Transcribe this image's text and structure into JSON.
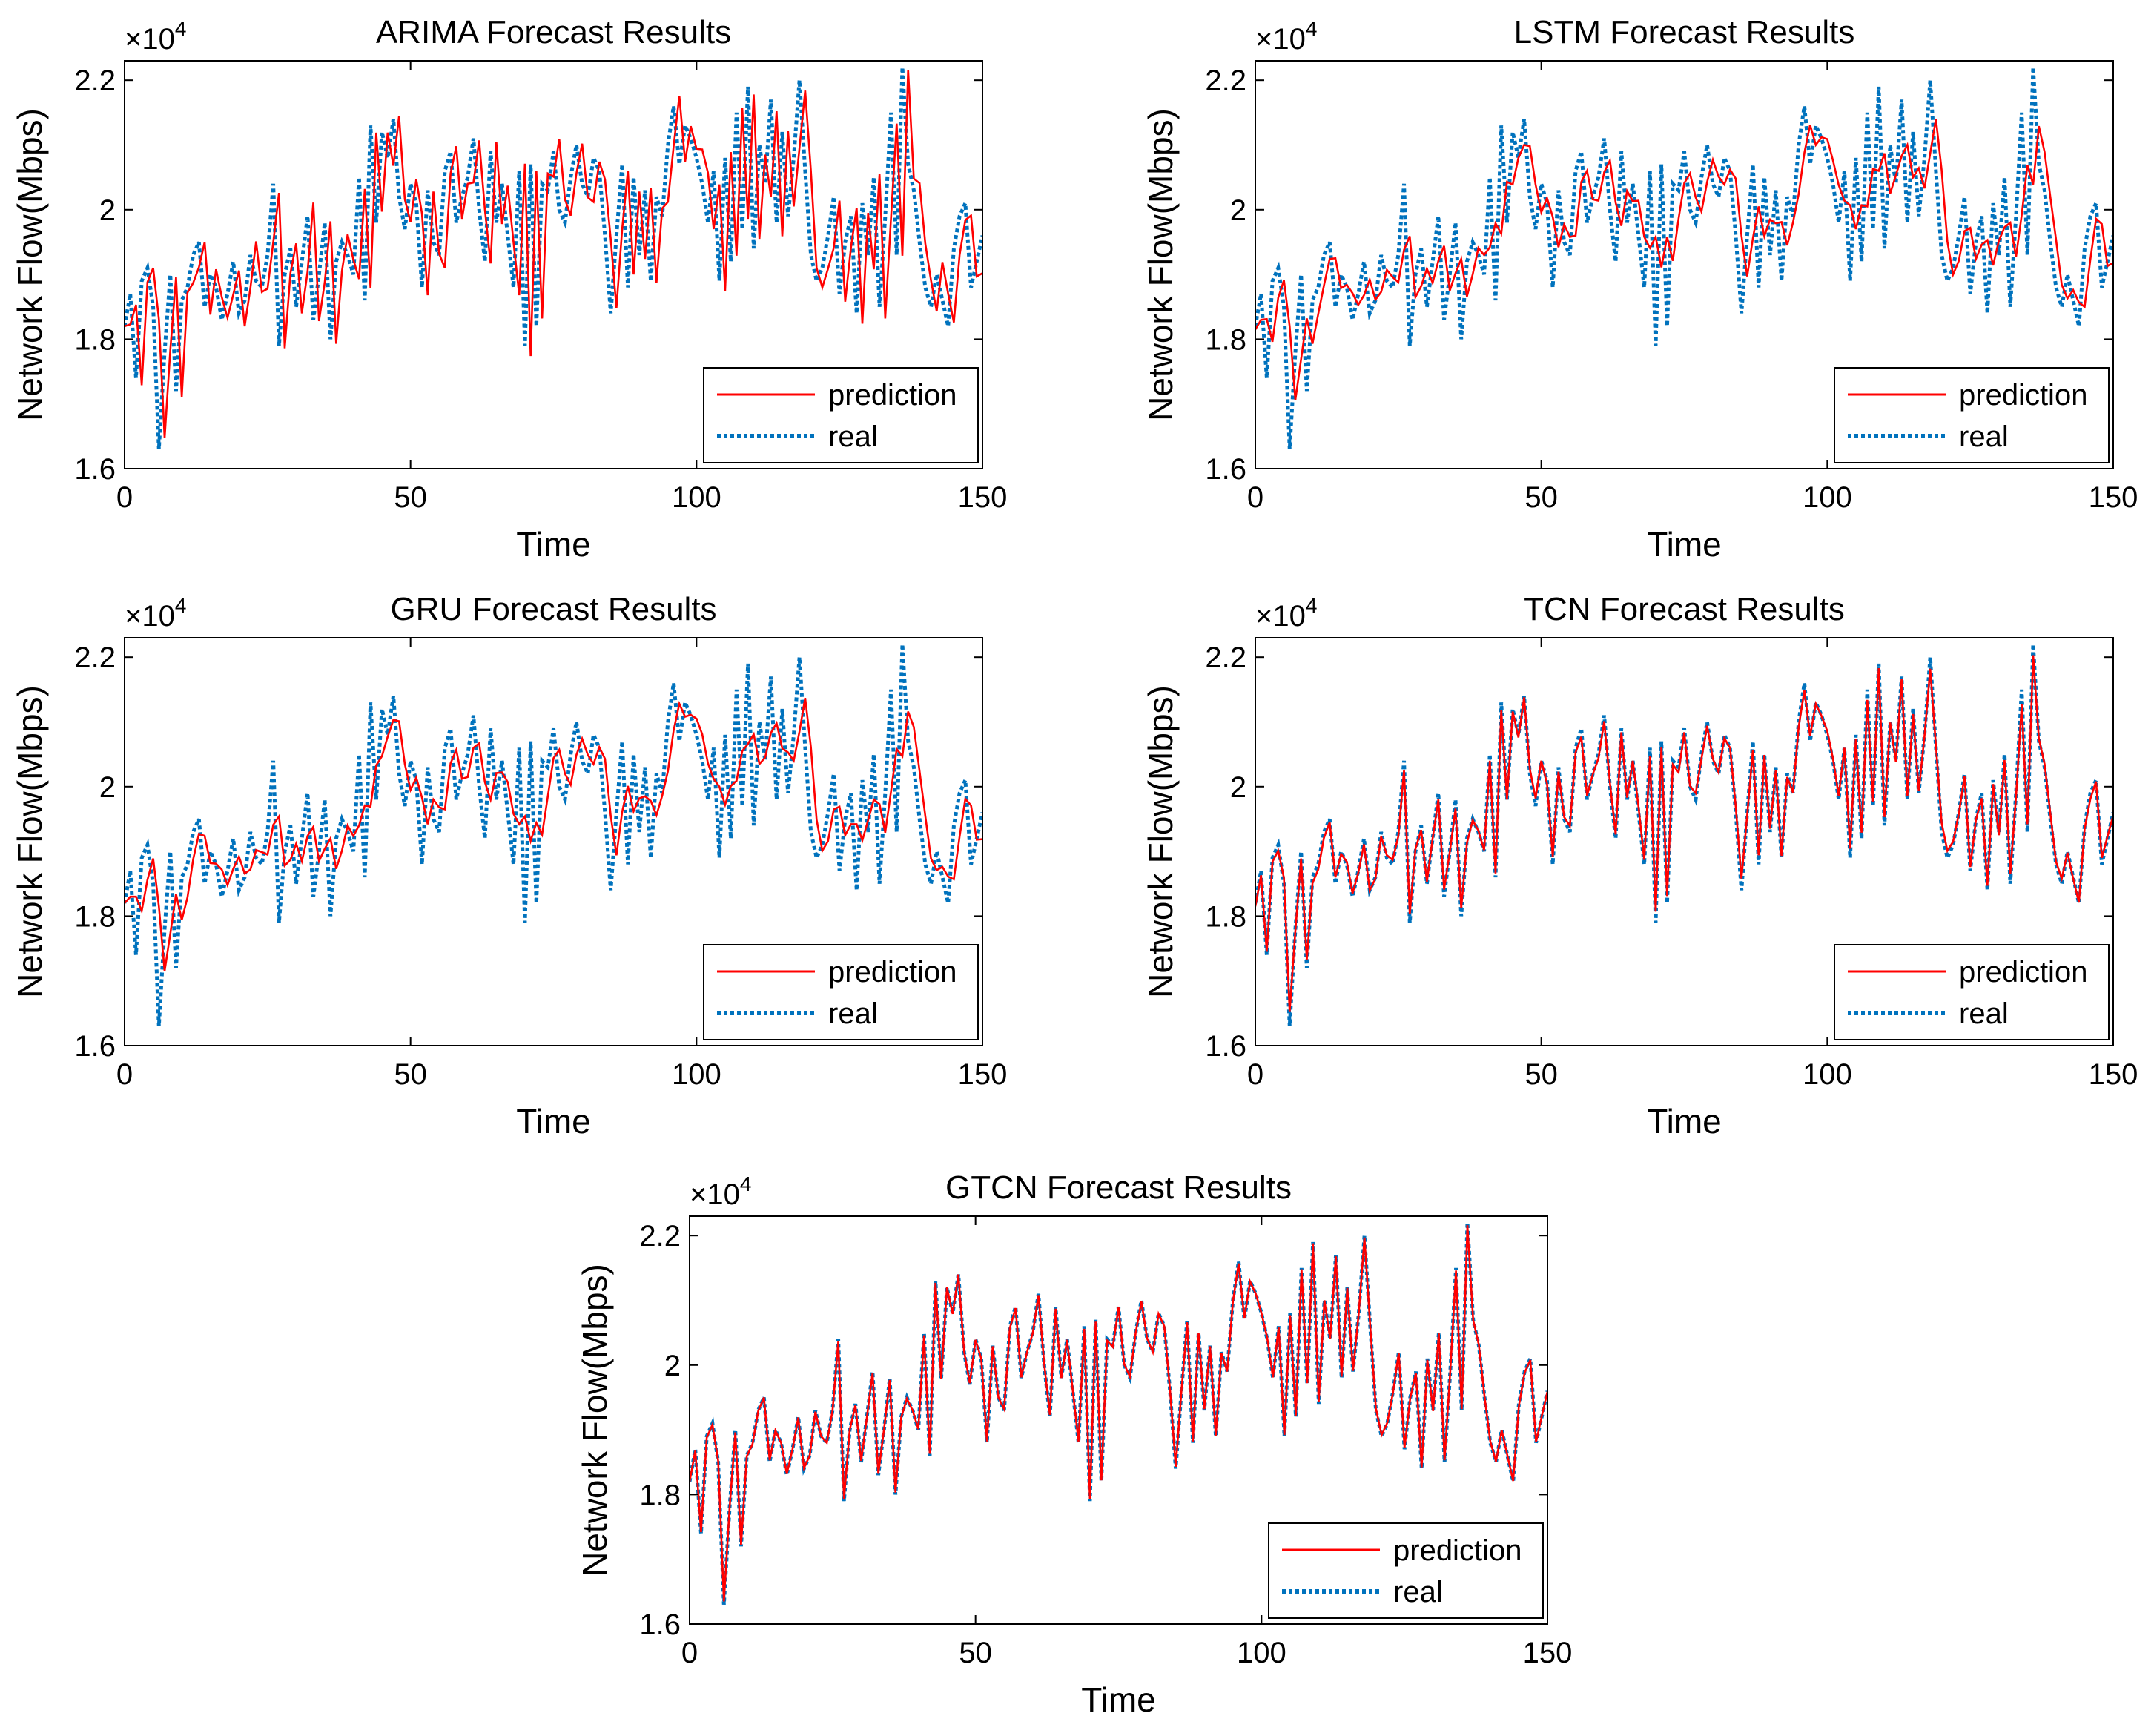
{
  "figure_description": "Five MATLAB-style line charts of network flow forecasts",
  "colors": {
    "prediction": "#ff0000",
    "real": "#0072bd",
    "axis": "#000000"
  },
  "chart_data": [
    {
      "type": "line",
      "title": "ARIMA Forecast Results",
      "xlabel": "Time",
      "ylabel": "Network Flow(Mbps)",
      "exponent": "×10",
      "exponent_power": "4",
      "xlim": [
        0,
        150
      ],
      "ylim": [
        1.6,
        2.23
      ],
      "xticks": [
        0,
        50,
        100,
        150
      ],
      "yticks": [
        1.6,
        1.8,
        2.0,
        2.2
      ],
      "ytick_labels": [
        "1.6",
        "1.8",
        "2",
        "2.2"
      ],
      "legend": [
        "prediction",
        "real"
      ],
      "legend_position": "bottom-right",
      "pred_scale": 1.0,
      "pred_lag": 1,
      "pred_noise": 0.22,
      "series": [
        {
          "name": "prediction",
          "values": []
        },
        {
          "name": "real",
          "values": []
        }
      ]
    },
    {
      "type": "line",
      "title": "LSTM Forecast Results",
      "xlabel": "Time",
      "ylabel": "Network Flow(Mbps)",
      "exponent": "×10",
      "exponent_power": "4",
      "xlim": [
        0,
        150
      ],
      "ylim": [
        1.6,
        2.23
      ],
      "xticks": [
        0,
        50,
        100,
        150
      ],
      "yticks": [
        1.6,
        1.8,
        2.0,
        2.2
      ],
      "ytick_labels": [
        "1.6",
        "1.8",
        "2",
        "2.2"
      ],
      "legend": [
        "prediction",
        "real"
      ],
      "legend_position": "bottom-right",
      "pred_scale": 0.35,
      "pred_lag": 1,
      "pred_noise": 0.05,
      "series": [
        {
          "name": "prediction",
          "values": []
        },
        {
          "name": "real",
          "values": []
        }
      ]
    },
    {
      "type": "line",
      "title": "GRU Forecast Results",
      "xlabel": "Time",
      "ylabel": "Network Flow(Mbps)",
      "exponent": "×10",
      "exponent_power": "4",
      "xlim": [
        0,
        150
      ],
      "ylim": [
        1.6,
        2.23
      ],
      "xticks": [
        0,
        50,
        100,
        150
      ],
      "yticks": [
        1.6,
        1.8,
        2.0,
        2.2
      ],
      "ytick_labels": [
        "1.6",
        "1.8",
        "2",
        "2.2"
      ],
      "legend": [
        "prediction",
        "real"
      ],
      "legend_position": "bottom-right",
      "pred_scale": 0.3,
      "pred_lag": 1,
      "pred_noise": 0.04,
      "series": [
        {
          "name": "prediction",
          "values": []
        },
        {
          "name": "real",
          "values": []
        }
      ]
    },
    {
      "type": "line",
      "title": "TCN Forecast Results",
      "xlabel": "Time",
      "ylabel": "Network Flow(Mbps)",
      "exponent": "×10",
      "exponent_power": "4",
      "xlim": [
        0,
        150
      ],
      "ylim": [
        1.6,
        2.23
      ],
      "xticks": [
        0,
        50,
        100,
        150
      ],
      "yticks": [
        1.6,
        1.8,
        2.0,
        2.2
      ],
      "ytick_labels": [
        "1.6",
        "1.8",
        "2",
        "2.2"
      ],
      "legend": [
        "prediction",
        "real"
      ],
      "legend_position": "bottom-right",
      "pred_scale": 0.88,
      "pred_lag": 0,
      "pred_noise": 0.05,
      "series": [
        {
          "name": "prediction",
          "values": []
        },
        {
          "name": "real",
          "values": []
        }
      ]
    },
    {
      "type": "line",
      "title": "GTCN Forecast Results",
      "xlabel": "Time",
      "ylabel": "Network Flow(Mbps)",
      "exponent": "×10",
      "exponent_power": "4",
      "xlim": [
        0,
        150
      ],
      "ylim": [
        1.6,
        2.23
      ],
      "xticks": [
        0,
        50,
        100,
        150
      ],
      "yticks": [
        1.6,
        1.8,
        2.0,
        2.2
      ],
      "ytick_labels": [
        "1.6",
        "1.8",
        "2",
        "2.2"
      ],
      "legend": [
        "prediction",
        "real"
      ],
      "legend_position": "bottom-right",
      "pred_scale": 0.97,
      "pred_lag": 0,
      "pred_noise": 0.01,
      "series": [
        {
          "name": "prediction",
          "values": []
        },
        {
          "name": "real",
          "values": []
        }
      ]
    }
  ],
  "real_series": [
    1.82,
    1.87,
    1.74,
    1.89,
    1.91,
    1.85,
    1.63,
    1.78,
    1.9,
    1.72,
    1.86,
    1.88,
    1.93,
    1.95,
    1.85,
    1.9,
    1.88,
    1.83,
    1.87,
    1.92,
    1.84,
    1.86,
    1.93,
    1.89,
    1.88,
    1.93,
    2.04,
    1.79,
    1.9,
    1.94,
    1.85,
    1.92,
    1.99,
    1.83,
    1.9,
    1.98,
    1.8,
    1.92,
    1.95,
    1.93,
    1.9,
    2.05,
    1.86,
    2.13,
    1.98,
    2.12,
    2.08,
    2.14,
    2.02,
    1.97,
    2.04,
    2.01,
    1.88,
    2.03,
    1.95,
    1.93,
    2.06,
    2.09,
    1.98,
    2.02,
    2.05,
    2.11,
    2.0,
    1.92,
    2.09,
    1.98,
    2.04,
    1.96,
    1.88,
    2.06,
    1.79,
    2.07,
    1.82,
    2.04,
    2.03,
    2.09,
    2.0,
    1.98,
    2.05,
    2.1,
    2.04,
    2.02,
    2.08,
    2.06,
    1.96,
    1.84,
    1.96,
    2.07,
    1.88,
    2.05,
    1.93,
    2.03,
    1.89,
    2.02,
    1.99,
    2.1,
    2.16,
    2.07,
    2.13,
    2.11,
    2.08,
    2.04,
    1.98,
    2.06,
    1.89,
    2.08,
    1.92,
    2.15,
    1.97,
    2.19,
    1.94,
    2.1,
    2.04,
    2.17,
    1.98,
    2.12,
    1.99,
    2.08,
    2.2,
    2.06,
    1.93,
    1.89,
    1.91,
    1.96,
    2.02,
    1.87,
    1.95,
    1.99,
    1.84,
    2.01,
    1.93,
    2.05,
    1.85,
    1.99,
    2.15,
    1.93,
    2.22,
    2.07,
    2.03,
    1.95,
    1.88,
    1.85,
    1.9,
    1.86,
    1.82,
    1.94,
    1.99,
    2.01,
    1.88,
    1.92,
    1.96
  ]
}
